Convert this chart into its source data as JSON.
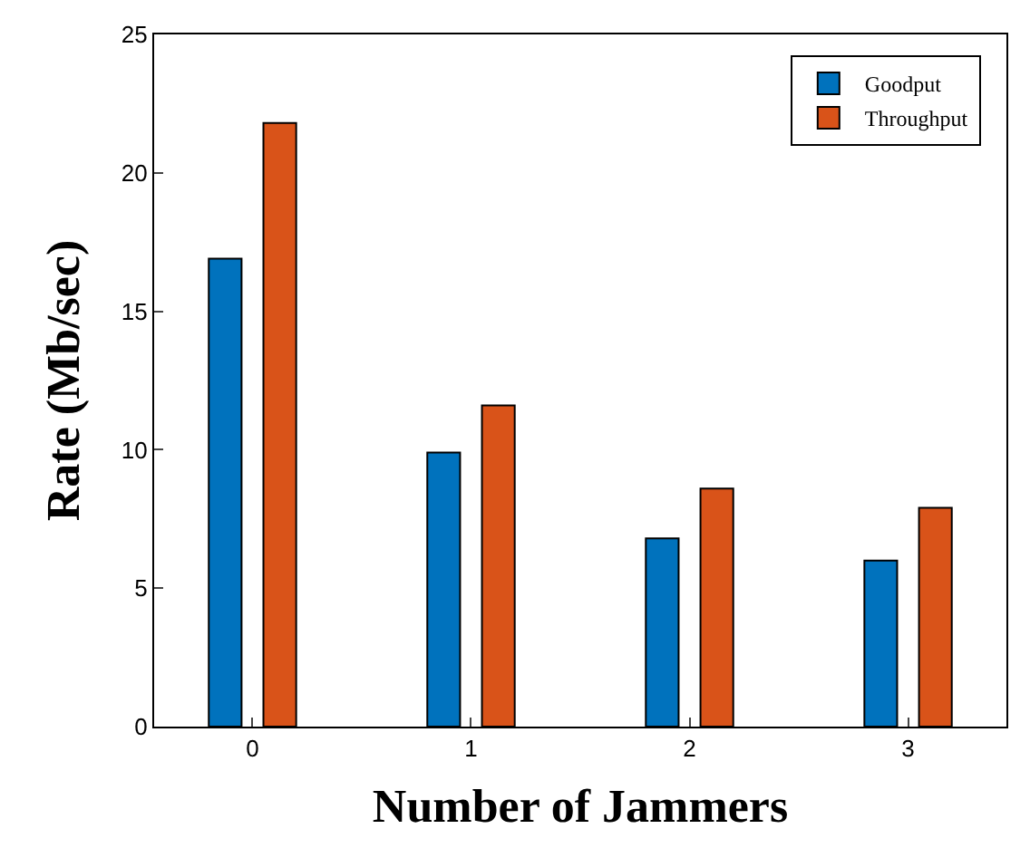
{
  "chart_data": {
    "type": "bar",
    "xlabel": "Number of Jammers",
    "ylabel": "Rate (Mb/sec)",
    "categories": [
      "0",
      "1",
      "2",
      "3"
    ],
    "series": [
      {
        "name": "Goodput",
        "color": "#0072bd",
        "values": [
          16.9,
          9.9,
          6.8,
          6.0
        ]
      },
      {
        "name": "Throughput",
        "color": "#d95319",
        "values": [
          21.8,
          11.6,
          8.6,
          7.9
        ]
      }
    ],
    "ylim": [
      0,
      25
    ],
    "yticks": [
      0,
      5,
      10,
      15,
      20,
      25
    ],
    "legend": "top right"
  }
}
